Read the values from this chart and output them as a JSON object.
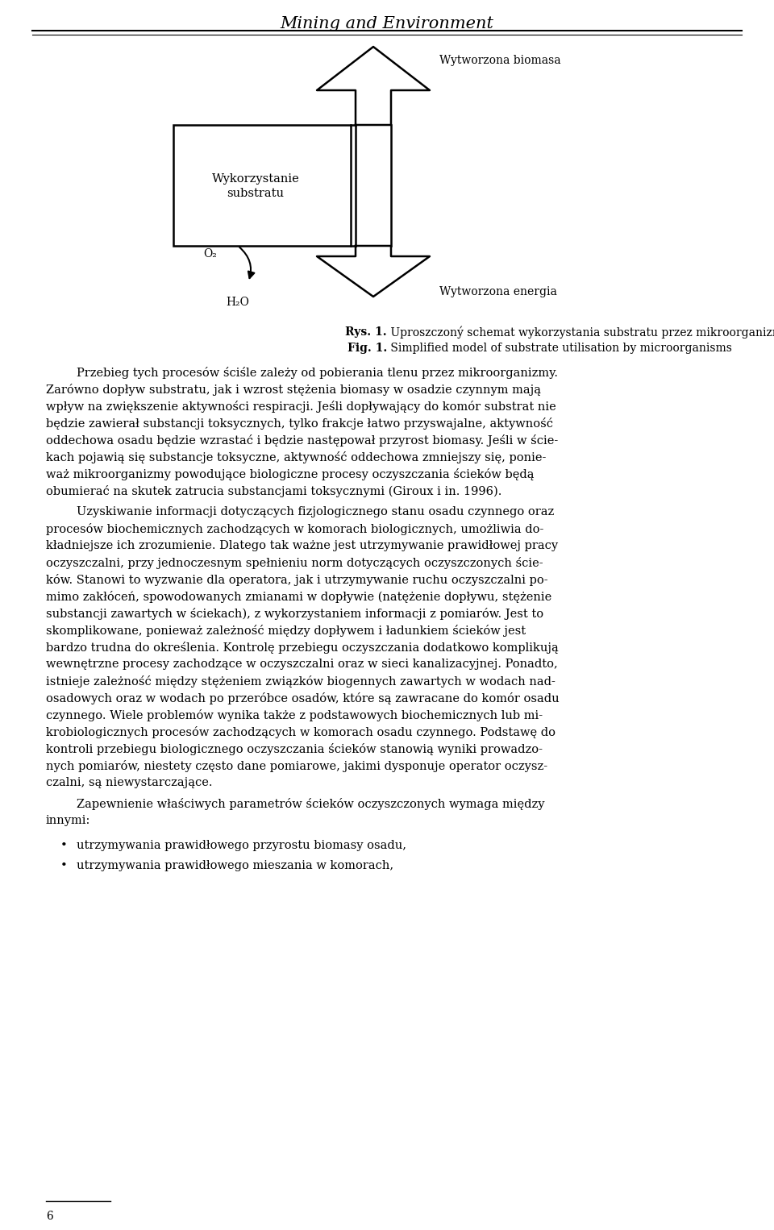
{
  "page_title": "Mining and Environment",
  "bg_color": "#ffffff",
  "text_color": "#1a1a1a",
  "fig_caption_pl_bold": "Rys. 1.",
  "fig_caption_pl_normal": " Uproszczoný schemat wykorzystania substratu przez mikroorganizmy",
  "fig_caption_en_bold": "Fig. 1.",
  "fig_caption_en_normal": " Simplified model of substrate utilisation by microorganisms",
  "diagram": {
    "box_label_line1": "Wykorzystanie",
    "box_label_line2": "substratu",
    "arrow_up_label": "Wytworzona biomasa",
    "arrow_down_label": "Wytworzona energia",
    "label_o2": "O₂",
    "label_h2o": "H₂O"
  },
  "lines_p1": [
    [
      true,
      "Przebieg tych procesów ściśle zależy od pobierania tlenu przez mikroorganizmy."
    ],
    [
      false,
      "Zarówno dopływ substratu, jak i wzrost stężenia biomasy w osadzie czynnym mają"
    ],
    [
      false,
      "wpływ na zwiększenie aktywności respiracji. Jeśli dopływający do komór substrat nie"
    ],
    [
      false,
      "będzie zawierał substancji toksycznych, tylko frakcje łatwo przyswajalne, aktywność"
    ],
    [
      false,
      "oddechowa osadu będzie wzrastać i będzie następował przyrost biomasy. Jeśli w ście-"
    ],
    [
      false,
      "kach pojawią się substancje toksyczne, aktywność oddechowa zmniejszy się, ponie-"
    ],
    [
      false,
      "waż mikroorganizmy powodujące biologiczne procesy oczyszczania ścieków będą"
    ],
    [
      false,
      "obumierać na skutek zatrucia substancjami toksycznymi (Giroux i in. 1996)."
    ]
  ],
  "lines_p2": [
    [
      true,
      "Uzyskiwanie informacji dotyczących fizjologicznego stanu osadu czynnego oraz"
    ],
    [
      false,
      "procesów biochemicznych zachodzących w komorach biologicznych, umożliwia do-"
    ],
    [
      false,
      "kładniejsze ich zrozumienie. Dlatego tak ważne jest utrzymywanie prawidłowej pracy"
    ],
    [
      false,
      "oczyszczalni, przy jednoczesnym spełnieniu norm dotyczących oczyszczonych ście-"
    ],
    [
      false,
      "ków. Stanowi to wyzwanie dla operatora, jak i utrzymywanie ruchu oczyszczalni po-"
    ],
    [
      false,
      "mimo zakłóceń, spowodowanych zmianami w dopływie (natężenie dopływu, stężenie"
    ],
    [
      false,
      "substancji zawartych w ściekach), z wykorzystaniem informacji z pomiarów. Jest to"
    ],
    [
      false,
      "skomplikowane, ponieważ zależność między dopływem i ładunkiem ścieków jest"
    ],
    [
      false,
      "bardzo trudna do określenia. Kontrolę przebiegu oczyszczania dodatkowo komplikują"
    ],
    [
      false,
      "wewnętrzne procesy zachodzące w oczyszczalni oraz w sieci kanalizacyjnej. Ponadto,"
    ],
    [
      false,
      "istnieje zależność między stężeniem związków biogennych zawartych w wodach nad-"
    ],
    [
      false,
      "osadowych oraz w wodach po przeróbce osadów, które są zawracane do komór osadu"
    ],
    [
      false,
      "czynnego. Wiele problemów wynika także z podstawowych biochemicznych lub mi-"
    ],
    [
      false,
      "krobiologicznych procesów zachodzących w komorach osadu czynnego. Podstawę do"
    ],
    [
      false,
      "kontroli przebiegu biologicznego oczyszczania ścieków stanowią wyniki prowadzo-"
    ],
    [
      false,
      "nych pomiarów, niestety często dane pomiarowe, jakimi dysponuje operator oczysz-"
    ],
    [
      false,
      "czalni, są niewystarczające."
    ]
  ],
  "lines_p3": [
    [
      true,
      "Zapewnienie właściwych parametrów ścieków oczyszczonych wymaga między"
    ],
    [
      false,
      "innymi:"
    ]
  ],
  "bullet_points": [
    "utrzymywania prawidłowego przyrostu biomasy osadu,",
    "utrzymywania prawidłowego mieszania w komorach,"
  ],
  "footer_text": "6"
}
